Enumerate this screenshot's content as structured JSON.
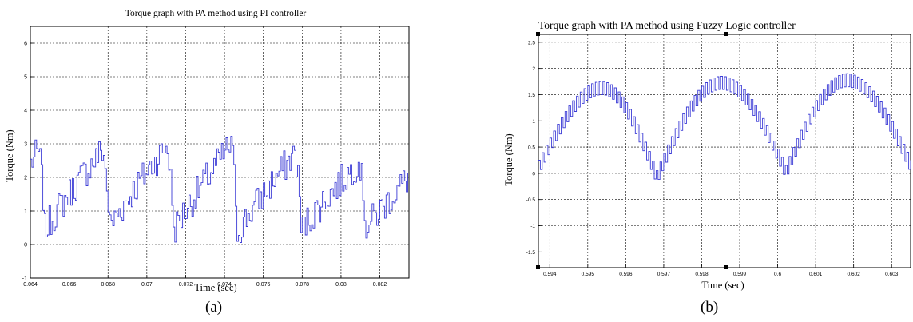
{
  "panels": [
    {
      "label": "(a)"
    },
    {
      "label": "(b)"
    }
  ],
  "chart_data": [
    {
      "type": "line",
      "title": "Torque graph with PA method using PI controller",
      "xlabel": "Time (sec)",
      "ylabel": "Torque (Nm)",
      "xlim": [
        0.064,
        0.0835
      ],
      "ylim": [
        -1,
        6.5
      ],
      "xticks": [
        0.064,
        0.066,
        0.068,
        0.07,
        0.072,
        0.074,
        0.076,
        0.078,
        0.08,
        0.082
      ],
      "xtick_labels": [
        "0.064",
        "0.066",
        "0.068",
        "0.07",
        "0.072",
        "0.074",
        "0.076",
        "0.078",
        "0.08",
        "0.082"
      ],
      "yticks": [
        -1,
        0,
        1,
        2,
        3,
        4,
        5,
        6
      ],
      "ytick_labels": [
        "-1",
        "0",
        "1",
        "2",
        "3",
        "4",
        "5",
        "6"
      ],
      "grid": true,
      "line_color": "#3b3bd6",
      "series": [
        {
          "shape": "pwm-ripple",
          "period": 0.0033,
          "phase": 0.0647,
          "peaks": [
            3.45,
            3.5,
            3.65,
            3.7,
            3.4,
            3.05
          ],
          "troughs": [
            0.25,
            0.4,
            0.45,
            0.35,
            0.3,
            0.4
          ],
          "ripple_amplitude": 1.0,
          "switch_step": 8e-05
        }
      ]
    },
    {
      "type": "line",
      "title": "Torque graph with PA method using Fuzzy Logic controller",
      "xlabel": "Time (sec)",
      "ylabel": "Torque (Nm)",
      "xlim": [
        0.5937,
        0.6035
      ],
      "ylim": [
        -1.8,
        2.65
      ],
      "xticks": [
        0.594,
        0.595,
        0.596,
        0.597,
        0.598,
        0.599,
        0.6,
        0.601,
        0.602,
        0.603
      ],
      "xtick_labels": [
        "0.594",
        "0.595",
        "0.596",
        "0.597",
        "0.598",
        "0.599",
        "0.6",
        "0.601",
        "0.602",
        "0.603"
      ],
      "yticks": [
        -1.5,
        -1,
        -0.5,
        0,
        0.5,
        1,
        1.5,
        2,
        2.5
      ],
      "ytick_labels": [
        "-1.5",
        "-1",
        "-0.5",
        "0",
        "0.5",
        "1",
        "1.5",
        "2",
        "2.5"
      ],
      "grid": true,
      "line_color": "#3b3bd6",
      "series": [
        {
          "shape": "rectified-sine-band",
          "peaks_x": [
            0.59535,
            0.5985,
            0.6018
          ],
          "peaks_y": [
            1.75,
            1.85,
            1.9
          ],
          "troughs_x": [
            0.5937,
            0.5968,
            0.6002,
            0.6035
          ],
          "troughs_y": [
            0.25,
            0.05,
            0.15,
            0.25
          ],
          "band_width": 0.25,
          "switch_step": 0.0001
        }
      ]
    }
  ]
}
